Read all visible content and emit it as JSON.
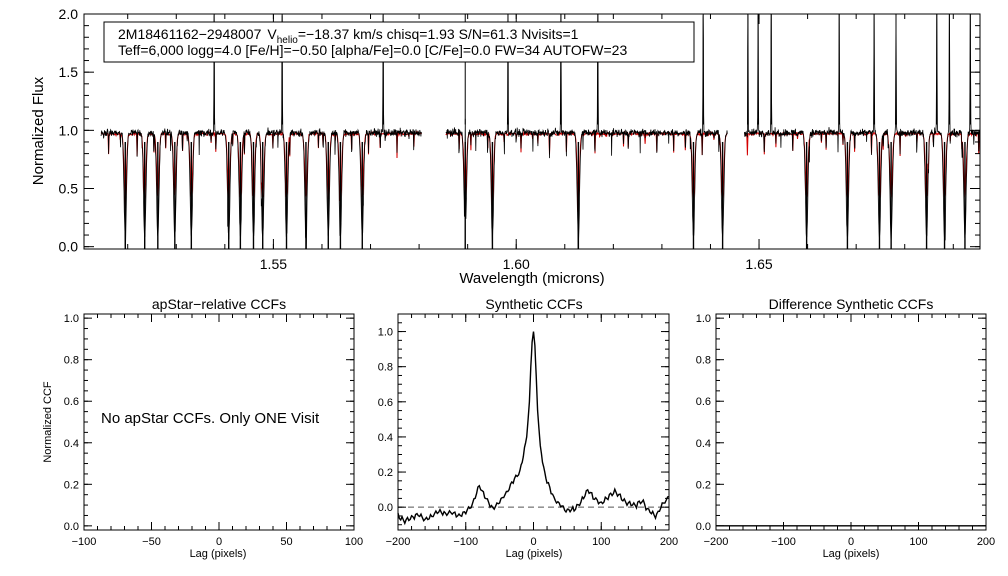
{
  "chart_data": [
    {
      "type": "line",
      "id": "spectrum",
      "title": "",
      "xlabel": "Wavelength (microns)",
      "ylabel": "Normalized Flux",
      "xlim": [
        1.511,
        1.6955
      ],
      "ylim": [
        -0.02,
        2.0
      ],
      "xticks": [
        1.55,
        1.6,
        1.65
      ],
      "xtick_labels": [
        "1.55",
        "1.60",
        "1.65"
      ],
      "yticks": [
        0.0,
        0.5,
        1.0,
        1.5,
        2.0
      ],
      "ytick_labels": [
        "0.0",
        "0.5",
        "1.0",
        "1.5",
        "2.0"
      ],
      "chips": [
        [
          1.5145,
          1.5805
        ],
        [
          1.5855,
          1.6435
        ],
        [
          1.647,
          1.6955
        ]
      ],
      "info": {
        "line1_id": "2M18461162−2948007",
        "line1_v": "V",
        "line1_sub": "helio",
        "line1_rest": "=−18.37 km/s  chisq=1.93  S/N=61.3  Nvisits=1",
        "line2": "Teff=6,000 logg=4.0 [Fe/H]=−0.50 [alpha/Fe]=0.0 [C/Fe]=0.0 FW=34 AUTOFW=23"
      },
      "series": [
        {
          "color": "#000000",
          "continuum": 0.98
        },
        {
          "color": "#d40000",
          "continuum": 0.97
        }
      ],
      "deep_lines": [
        1.5195,
        1.5235,
        1.5262,
        1.5297,
        1.5331,
        1.5408,
        1.5432,
        1.5459,
        1.5478,
        1.5527,
        1.5567,
        1.5613,
        1.5638,
        1.5683,
        1.5895,
        1.5951,
        1.6128,
        1.6365,
        1.6425,
        1.6598,
        1.6682,
        1.6748,
        1.6772,
        1.6845,
        1.6882,
        1.6924
      ],
      "spike_lines": [
        1.5378,
        1.5518,
        1.5726,
        1.5895,
        1.5983,
        1.6092,
        1.6168,
        1.6385,
        1.6477,
        1.6498,
        1.6525,
        1.6665,
        1.6737,
        1.6782,
        1.6866,
        1.6892,
        1.6935
      ]
    },
    {
      "type": "line",
      "id": "apstar-ccf",
      "title": "apStar−relative CCFs",
      "xlabel": "Lag (pixels)",
      "ylabel": "Normalized CCF",
      "xlim": [
        -100,
        100
      ],
      "ylim": [
        -0.02,
        1.02
      ],
      "xticks": [
        -100,
        -50,
        0,
        50,
        100
      ],
      "xtick_labels": [
        "−100",
        "−50",
        "0",
        "50",
        "100"
      ],
      "yticks": [
        0.0,
        0.2,
        0.4,
        0.6,
        0.8,
        1.0
      ],
      "ytick_labels": [
        "0.0",
        "0.2",
        "0.4",
        "0.6",
        "0.8",
        "1.0"
      ],
      "annotation": "No apStar CCFs.  Only ONE Visit",
      "series": []
    },
    {
      "type": "line",
      "id": "synthetic-ccf",
      "title": "Synthetic CCFs",
      "xlabel": "Lag (pixels)",
      "ylabel": "",
      "xlim": [
        -200,
        200
      ],
      "ylim": [
        -0.13,
        1.1
      ],
      "xticks": [
        -200,
        -100,
        0,
        100,
        200
      ],
      "xtick_labels": [
        "−200",
        "−100",
        "0",
        "100",
        "200"
      ],
      "yticks": [
        0.0,
        0.2,
        0.4,
        0.6,
        0.8,
        1.0
      ],
      "ytick_labels": [
        "0.0",
        "0.2",
        "0.4",
        "0.6",
        "0.8",
        "1.0"
      ],
      "reference_line_y": 0.0,
      "series": [
        {
          "color": "#000000",
          "x": [
            -200,
            -190,
            -180,
            -170,
            -160,
            -150,
            -140,
            -130,
            -120,
            -110,
            -100,
            -90,
            -80,
            -70,
            -60,
            -50,
            -40,
            -30,
            -20,
            -15,
            -10,
            -6,
            -4,
            -2,
            0,
            2,
            4,
            6,
            10,
            15,
            20,
            30,
            40,
            50,
            60,
            70,
            80,
            90,
            100,
            110,
            120,
            130,
            140,
            150,
            160,
            170,
            180,
            190,
            200
          ],
          "y": [
            -0.05,
            -0.08,
            -0.06,
            -0.04,
            -0.07,
            -0.05,
            -0.02,
            -0.04,
            -0.03,
            -0.05,
            -0.03,
            0.02,
            0.12,
            0.05,
            -0.01,
            0.03,
            0.08,
            0.15,
            0.2,
            0.3,
            0.4,
            0.6,
            0.8,
            0.94,
            1.0,
            0.92,
            0.75,
            0.55,
            0.35,
            0.22,
            0.15,
            0.05,
            0.01,
            -0.02,
            -0.01,
            0.03,
            0.1,
            0.05,
            0.02,
            0.06,
            0.09,
            0.05,
            0.02,
            0.01,
            0.04,
            -0.02,
            -0.05,
            0.01,
            0.06
          ]
        }
      ]
    },
    {
      "type": "line",
      "id": "difference-ccf",
      "title": "Difference Synthetic CCFs",
      "xlabel": "Lag (pixels)",
      "ylabel": "",
      "xlim": [
        -200,
        200
      ],
      "ylim": [
        -0.02,
        1.02
      ],
      "xticks": [
        -200,
        -100,
        0,
        100,
        200
      ],
      "xtick_labels": [
        "−200",
        "−100",
        "0",
        "100",
        "200"
      ],
      "yticks": [
        0.0,
        0.2,
        0.4,
        0.6,
        0.8,
        1.0
      ],
      "ytick_labels": [
        "0.0",
        "0.2",
        "0.4",
        "0.6",
        "0.8",
        "1.0"
      ],
      "series": [
        {
          "color": "#000000",
          "x": [
            -200,
            200
          ],
          "y": [
            0.0,
            0.0
          ]
        }
      ]
    }
  ]
}
